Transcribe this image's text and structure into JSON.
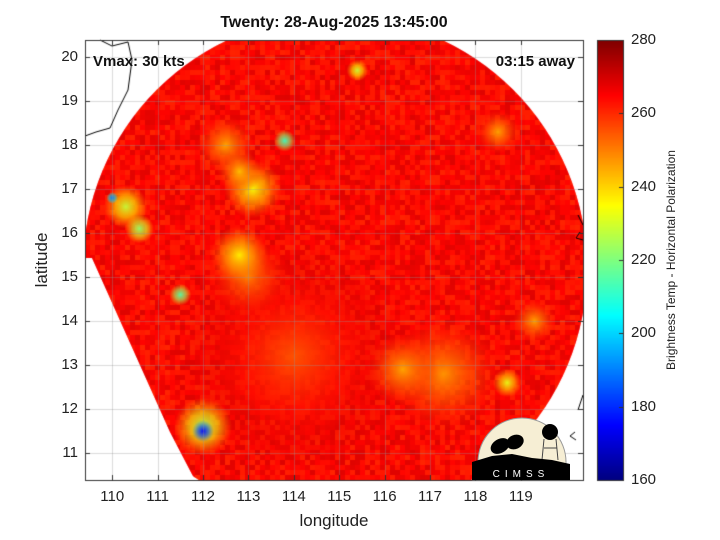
{
  "chart_data": {
    "type": "heatmap",
    "title": "Twenty: 28-Aug-2025 13:45:00",
    "xlabel": "longitude",
    "ylabel": "latitude",
    "xlim": [
      109.4,
      120.37
    ],
    "ylim": [
      10.39,
      20.39
    ],
    "xticks": [
      "110",
      "111",
      "112",
      "113",
      "114",
      "115",
      "116",
      "117",
      "118",
      "119"
    ],
    "yticks": [
      "11",
      "12",
      "13",
      "14",
      "15",
      "16",
      "17",
      "18",
      "19",
      "20"
    ],
    "grid": true,
    "colorbar": {
      "label": "Brightness Temp - Horizontal Polarization",
      "range": [
        160,
        280
      ],
      "ticks": [
        "160",
        "180",
        "200",
        "220",
        "240",
        "260",
        "280"
      ],
      "colormap": "jet"
    },
    "background_temp": 264,
    "features": [
      {
        "lon": 114.0,
        "lat": 13.2,
        "r": 1.5,
        "temp": 255
      },
      {
        "lon": 113.0,
        "lat": 15.0,
        "r": 0.6,
        "temp": 250
      },
      {
        "lon": 117.3,
        "lat": 12.8,
        "r": 0.8,
        "temp": 247
      },
      {
        "lon": 116.4,
        "lat": 12.9,
        "r": 0.5,
        "temp": 245
      },
      {
        "lon": 112.5,
        "lat": 18.0,
        "r": 0.4,
        "temp": 245
      },
      {
        "lon": 113.1,
        "lat": 17.0,
        "r": 0.4,
        "temp": 234
      },
      {
        "lon": 112.8,
        "lat": 17.4,
        "r": 0.3,
        "temp": 242
      },
      {
        "lon": 112.8,
        "lat": 15.5,
        "r": 0.4,
        "temp": 236
      },
      {
        "lon": 113.8,
        "lat": 18.1,
        "r": 0.15,
        "temp": 212
      },
      {
        "lon": 110.3,
        "lat": 16.6,
        "r": 0.3,
        "temp": 228
      },
      {
        "lon": 110.6,
        "lat": 16.1,
        "r": 0.2,
        "temp": 222
      },
      {
        "lon": 110.0,
        "lat": 16.8,
        "r": 0.08,
        "temp": 190
      },
      {
        "lon": 112.0,
        "lat": 11.6,
        "r": 0.4,
        "temp": 225
      },
      {
        "lon": 112.0,
        "lat": 11.5,
        "r": 0.15,
        "temp": 175
      },
      {
        "lon": 115.4,
        "lat": 19.7,
        "r": 0.15,
        "temp": 228
      },
      {
        "lon": 111.5,
        "lat": 14.6,
        "r": 0.15,
        "temp": 215
      },
      {
        "lon": 118.7,
        "lat": 12.6,
        "r": 0.2,
        "temp": 232
      },
      {
        "lon": 119.3,
        "lat": 14.0,
        "r": 0.3,
        "temp": 245
      },
      {
        "lon": 118.5,
        "lat": 18.3,
        "r": 0.3,
        "temp": 245
      }
    ],
    "annotations": {
      "vmax": "Vmax: 30 kts",
      "eta": "03:15 away"
    }
  },
  "logo": {
    "text": "CIMSS"
  }
}
